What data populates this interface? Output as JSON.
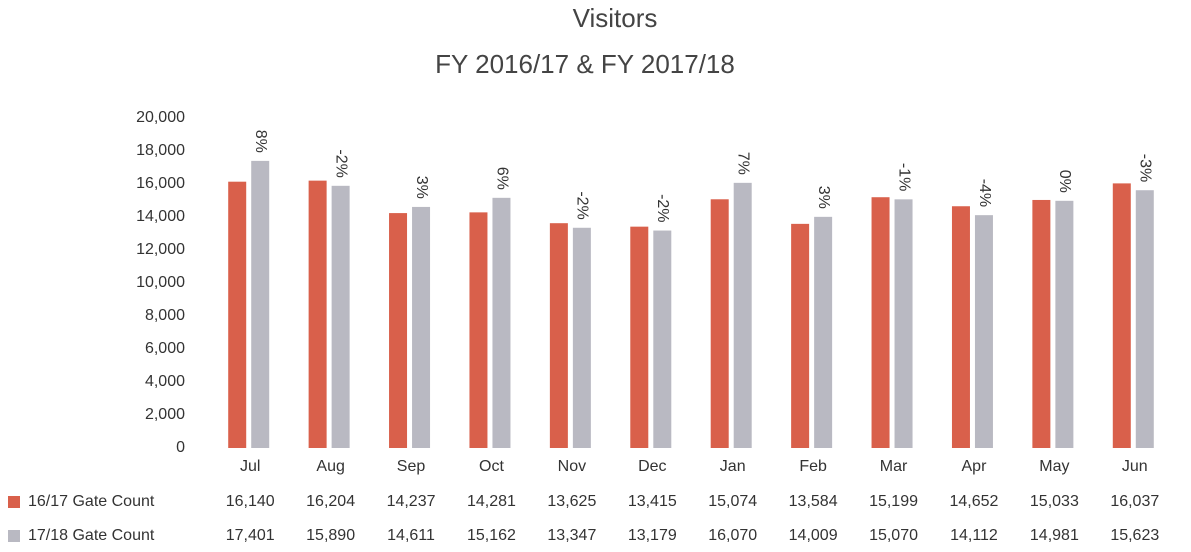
{
  "chart_data": {
    "type": "bar",
    "title": "Visitors",
    "subtitle": "FY 2016/17 & FY 2017/18",
    "categories": [
      "Jul",
      "Aug",
      "Sep",
      "Oct",
      "Nov",
      "Dec",
      "Jan",
      "Feb",
      "Mar",
      "Apr",
      "May",
      "Jun"
    ],
    "series": [
      {
        "name": "16/17 Gate Count",
        "color": "#d9604b",
        "values": [
          16140,
          16204,
          14237,
          14281,
          13625,
          13415,
          15074,
          13584,
          15199,
          14652,
          15033,
          16037
        ],
        "value_labels": [
          "16,140",
          "16,204",
          "14,237",
          "14,281",
          "13,625",
          "13,415",
          "15,074",
          "13,584",
          "15,199",
          "14,652",
          "15,033",
          "16,037"
        ]
      },
      {
        "name": "17/18 Gate Count",
        "color": "#b9b9c2",
        "values": [
          17401,
          15890,
          14611,
          15162,
          13347,
          13179,
          16070,
          14009,
          15070,
          14112,
          14981,
          15623
        ],
        "value_labels": [
          "17,401",
          "15,890",
          "14,611",
          "15,162",
          "13,347",
          "13,179",
          "16,070",
          "14,009",
          "15,070",
          "14,112",
          "14,981",
          "15,623"
        ]
      }
    ],
    "change": {
      "values": [
        8,
        -2,
        3,
        6,
        -2,
        -2,
        7,
        3,
        -1,
        -4,
        0,
        -3
      ],
      "value_labels": [
        "8%",
        "-2%",
        "3%",
        "6%",
        "-2%",
        "-2%",
        "7%",
        "3%",
        "-1%",
        "-4%",
        "0%",
        "-3%"
      ]
    },
    "ylim": [
      0,
      20000
    ],
    "yticks": [
      0,
      {
        "value": 2000,
        "label": "2,000"
      },
      {
        "value": 4000,
        "label": "4,000"
      },
      {
        "value": 6000,
        "label": "6,000"
      },
      {
        "value": 8000,
        "label": "8,000"
      },
      {
        "value": 10000,
        "label": "10,000"
      },
      {
        "value": 12000,
        "label": "12,000"
      },
      {
        "value": 14000,
        "label": "14,000"
      },
      {
        "value": 16000,
        "label": "16,000"
      },
      {
        "value": 18000,
        "label": "18,000"
      },
      {
        "value": 20000,
        "label": "20,000"
      }
    ],
    "grid": false
  }
}
